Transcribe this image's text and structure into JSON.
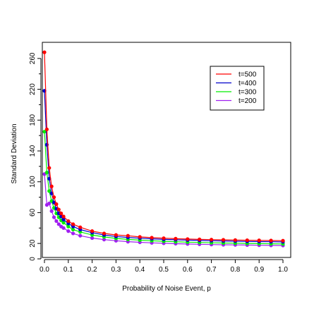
{
  "chart_data": {
    "type": "line",
    "xlabel": "Probability of Noise Event, p",
    "ylabel": "Standard Deviation",
    "xlim": [
      0,
      1
    ],
    "ylim": [
      0,
      280
    ],
    "x_ticks": [
      0.0,
      0.1,
      0.2,
      0.3,
      0.4,
      0.5,
      0.6,
      0.7,
      0.8,
      0.9,
      1.0
    ],
    "x_tick_labels": [
      "0.0",
      "0.1",
      "0.2",
      "0.3",
      "0.4",
      "0.5",
      "0.6",
      "0.7",
      "0.8",
      "0.9",
      "1.0"
    ],
    "y_ticks": [
      0,
      20,
      60,
      100,
      140,
      180,
      220,
      260
    ],
    "y_tick_labels": [
      "0",
      "20",
      "60",
      "100",
      "140",
      "180",
      "220",
      "260"
    ],
    "y_minor_ticks": [
      40,
      80,
      120,
      160,
      200,
      240
    ],
    "grid": false,
    "legend_position": "top-right",
    "series": [
      {
        "name": "t=500",
        "color": "#ff0000",
        "x": [
          0.0,
          0.01,
          0.02,
          0.03,
          0.04,
          0.05,
          0.06,
          0.07,
          0.08,
          0.1,
          0.12,
          0.15,
          0.2,
          0.25,
          0.3,
          0.35,
          0.4,
          0.45,
          0.5,
          0.55,
          0.6,
          0.65,
          0.7,
          0.75,
          0.8,
          0.85,
          0.9,
          0.95,
          1.0
        ],
        "y": [
          268,
          168,
          118,
          94,
          80,
          71,
          64,
          59,
          55,
          49,
          45,
          41,
          36,
          33,
          31,
          30,
          28.5,
          27.5,
          26.8,
          26.2,
          25.7,
          25.3,
          25,
          24.7,
          24.4,
          24.2,
          24,
          23.8,
          23.6
        ]
      },
      {
        "name": "t=400",
        "color": "#0000cc",
        "x": [
          0.0,
          0.01,
          0.02,
          0.03,
          0.04,
          0.05,
          0.06,
          0.07,
          0.08,
          0.1,
          0.12,
          0.15,
          0.2,
          0.25,
          0.3,
          0.35,
          0.4,
          0.45,
          0.5,
          0.55,
          0.6,
          0.65,
          0.7,
          0.75,
          0.8,
          0.85,
          0.9,
          0.95,
          1.0
        ],
        "y": [
          218,
          148,
          104,
          85,
          73,
          65,
          59,
          55,
          51,
          46,
          42,
          38,
          34,
          31,
          29,
          27.8,
          26.8,
          26,
          25.3,
          24.8,
          24.3,
          23.9,
          23.5,
          23.2,
          22.9,
          22.6,
          22.4,
          22.2,
          22
        ]
      },
      {
        "name": "t=300",
        "color": "#00ee00",
        "x": [
          0.0,
          0.01,
          0.02,
          0.03,
          0.04,
          0.05,
          0.06,
          0.07,
          0.08,
          0.1,
          0.12,
          0.15,
          0.2,
          0.25,
          0.3,
          0.35,
          0.4,
          0.45,
          0.5,
          0.55,
          0.6,
          0.65,
          0.7,
          0.75,
          0.8,
          0.85,
          0.9,
          0.95,
          1.0
        ],
        "y": [
          165,
          112,
          88,
          75,
          66,
          59,
          54,
          50,
          47,
          42,
          38,
          35,
          31,
          28.5,
          26.5,
          25.3,
          24.3,
          23.5,
          22.8,
          22.2,
          21.7,
          21.3,
          20.9,
          20.6,
          20.3,
          20,
          19.8,
          19.6,
          19.4
        ]
      },
      {
        "name": "t=200",
        "color": "#a020f0",
        "x": [
          0.0,
          0.01,
          0.02,
          0.03,
          0.04,
          0.05,
          0.06,
          0.07,
          0.08,
          0.1,
          0.12,
          0.15,
          0.2,
          0.25,
          0.3,
          0.35,
          0.4,
          0.45,
          0.5,
          0.55,
          0.6,
          0.65,
          0.7,
          0.75,
          0.8,
          0.85,
          0.9,
          0.95,
          1.0
        ],
        "y": [
          110,
          70,
          72,
          62,
          54,
          49,
          45,
          42,
          40,
          36,
          33,
          30,
          27,
          25,
          23.5,
          22.3,
          21.5,
          20.8,
          20.2,
          19.7,
          19.3,
          18.9,
          18.6,
          18.3,
          18.1,
          17.9,
          17.7,
          17.5,
          17.3
        ]
      }
    ]
  }
}
